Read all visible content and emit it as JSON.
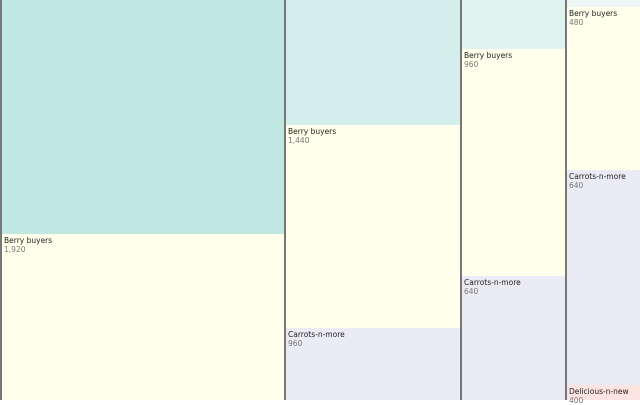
{
  "chart_data": {
    "type": "treemap",
    "colors": {
      "Berry buyers": "#ffffeb",
      "Carrots-n-more": "#ebebf5",
      "Delicious-n-new": "#fde4e0"
    },
    "groups": [
      {
        "top_color": "#c0e8e0",
        "cells": [
          {
            "name": "Berry buyers",
            "value": 1920,
            "label": "1,920"
          }
        ]
      },
      {
        "top_color": "#d4eeeb",
        "cells": [
          {
            "name": "Berry buyers",
            "value": 1440,
            "label": "1,440"
          },
          {
            "name": "Carrots-n-more",
            "value": 960,
            "label": "960"
          }
        ]
      },
      {
        "top_color": "#e0f3f1",
        "cells": [
          {
            "name": "Berry buyers",
            "value": 960,
            "label": "960"
          },
          {
            "name": "Carrots-n-more",
            "value": 640,
            "label": "640"
          }
        ]
      },
      {
        "top_color": "#ebf6f5",
        "cells": [
          {
            "name": "Berry buyers",
            "value": 480,
            "label": "480"
          },
          {
            "name": "Carrots-n-more",
            "value": 640,
            "label": "640"
          },
          {
            "name": "Delicious-n-new",
            "value": 400,
            "label": "400"
          }
        ]
      }
    ]
  }
}
